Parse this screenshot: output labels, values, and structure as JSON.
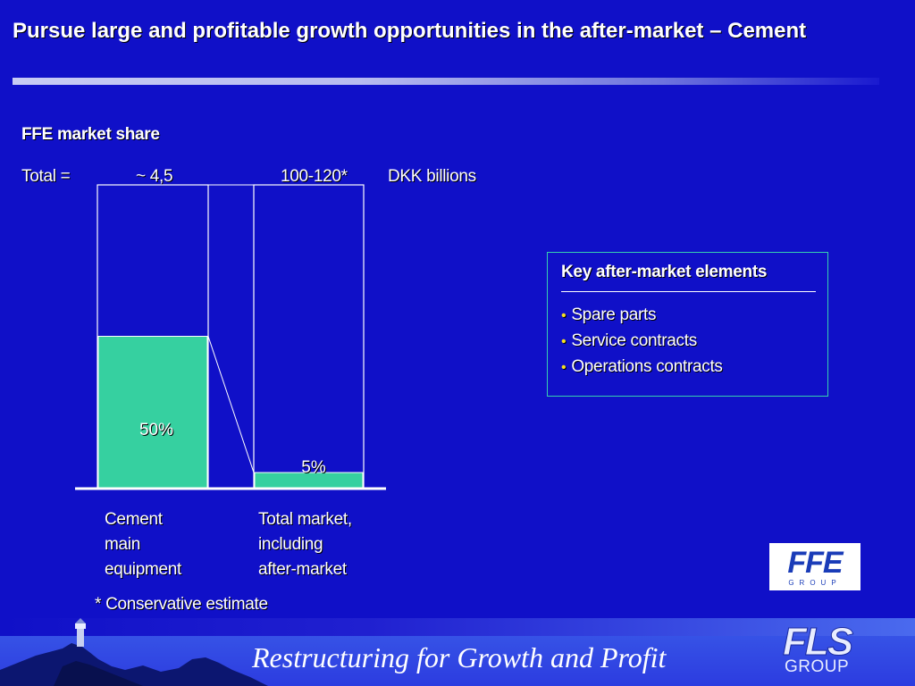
{
  "slide": {
    "title": "Pursue large and profitable growth opportunities in the after-market – Cement",
    "section_title": "FFE market share",
    "total_label": "Total =",
    "unit": "DKK billions",
    "note": "* Conservative estimate",
    "footer_text": "Restructuring for Growth and Profit"
  },
  "keybox": {
    "title": "Key after-market elements",
    "items": [
      "Spare parts",
      "Service contracts",
      "Operations contracts"
    ]
  },
  "logos": {
    "ffe": "FFE",
    "ffe_sub": "GROUP",
    "fls": "FLS",
    "fls_sub": "GROUP"
  },
  "colors": {
    "background": "#1010c8",
    "share_fill": "#36d0a0",
    "outline": "#ffffff",
    "bullet": "#f5e020"
  },
  "chart_data": {
    "type": "bar",
    "stacked_percent": true,
    "categories": [
      "Cement\nmain\nequipment",
      "Total market,\nincluding\nafter-market"
    ],
    "totals": [
      "~ 4,5",
      "100-120*"
    ],
    "series": [
      {
        "name": "FFE market share",
        "values": [
          50,
          5
        ],
        "labels": [
          "50%",
          "5%"
        ]
      },
      {
        "values": [
          50,
          95
        ]
      }
    ],
    "ylim": [
      0,
      100
    ]
  }
}
